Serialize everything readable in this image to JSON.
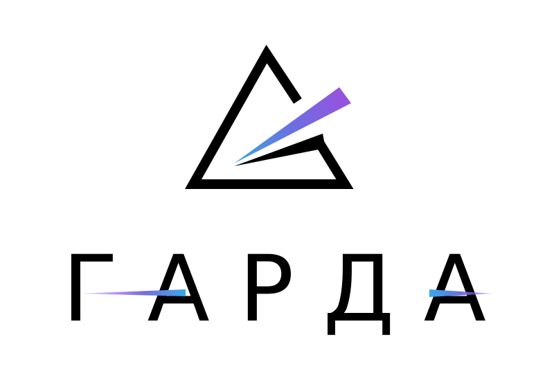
{
  "logo": {
    "brand_name": "ГАРДА"
  }
}
